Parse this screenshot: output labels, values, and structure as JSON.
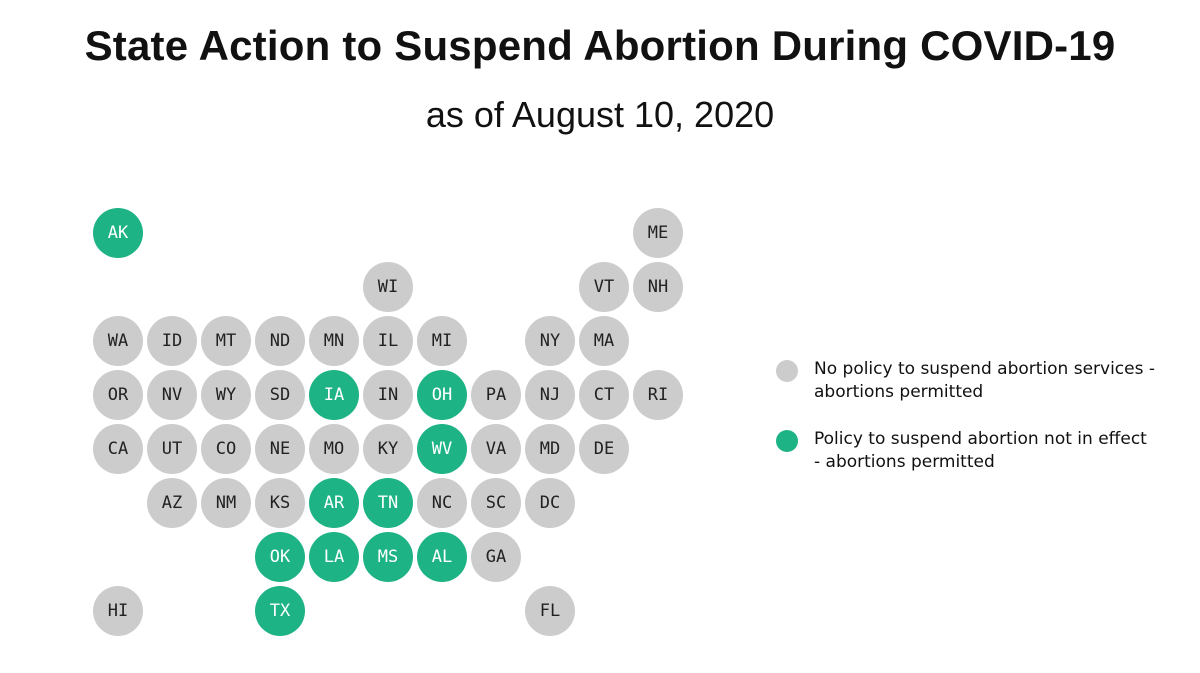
{
  "title": "State Action to Suspend Abortion During COVID-19",
  "subtitle": "as of August 10, 2020",
  "colors": {
    "no_policy": "#cccccc",
    "policy_not_in_effect": "#1db385",
    "label_on_gray": "#222222",
    "label_on_green": "#ffffff"
  },
  "legend": [
    {
      "key": "no_policy",
      "label": "No policy to suspend abortion services - abortions permitted"
    },
    {
      "key": "policy_not_in_effect",
      "label": "Policy to suspend abortion not in effect - abortions permitted"
    }
  ],
  "states": [
    {
      "code": "AK",
      "row": 0,
      "col": 0,
      "status": "policy_not_in_effect"
    },
    {
      "code": "ME",
      "row": 0,
      "col": 10,
      "status": "no_policy"
    },
    {
      "code": "WI",
      "row": 1,
      "col": 5,
      "status": "no_policy"
    },
    {
      "code": "VT",
      "row": 1,
      "col": 9,
      "status": "no_policy"
    },
    {
      "code": "NH",
      "row": 1,
      "col": 10,
      "status": "no_policy"
    },
    {
      "code": "WA",
      "row": 2,
      "col": 0,
      "status": "no_policy"
    },
    {
      "code": "ID",
      "row": 2,
      "col": 1,
      "status": "no_policy"
    },
    {
      "code": "MT",
      "row": 2,
      "col": 2,
      "status": "no_policy"
    },
    {
      "code": "ND",
      "row": 2,
      "col": 3,
      "status": "no_policy"
    },
    {
      "code": "MN",
      "row": 2,
      "col": 4,
      "status": "no_policy"
    },
    {
      "code": "IL",
      "row": 2,
      "col": 5,
      "status": "no_policy"
    },
    {
      "code": "MI",
      "row": 2,
      "col": 6,
      "status": "no_policy"
    },
    {
      "code": "NY",
      "row": 2,
      "col": 8,
      "status": "no_policy"
    },
    {
      "code": "MA",
      "row": 2,
      "col": 9,
      "status": "no_policy"
    },
    {
      "code": "OR",
      "row": 3,
      "col": 0,
      "status": "no_policy"
    },
    {
      "code": "NV",
      "row": 3,
      "col": 1,
      "status": "no_policy"
    },
    {
      "code": "WY",
      "row": 3,
      "col": 2,
      "status": "no_policy"
    },
    {
      "code": "SD",
      "row": 3,
      "col": 3,
      "status": "no_policy"
    },
    {
      "code": "IA",
      "row": 3,
      "col": 4,
      "status": "policy_not_in_effect"
    },
    {
      "code": "IN",
      "row": 3,
      "col": 5,
      "status": "no_policy"
    },
    {
      "code": "OH",
      "row": 3,
      "col": 6,
      "status": "policy_not_in_effect"
    },
    {
      "code": "PA",
      "row": 3,
      "col": 7,
      "status": "no_policy"
    },
    {
      "code": "NJ",
      "row": 3,
      "col": 8,
      "status": "no_policy"
    },
    {
      "code": "CT",
      "row": 3,
      "col": 9,
      "status": "no_policy"
    },
    {
      "code": "RI",
      "row": 3,
      "col": 10,
      "status": "no_policy"
    },
    {
      "code": "CA",
      "row": 4,
      "col": 0,
      "status": "no_policy"
    },
    {
      "code": "UT",
      "row": 4,
      "col": 1,
      "status": "no_policy"
    },
    {
      "code": "CO",
      "row": 4,
      "col": 2,
      "status": "no_policy"
    },
    {
      "code": "NE",
      "row": 4,
      "col": 3,
      "status": "no_policy"
    },
    {
      "code": "MO",
      "row": 4,
      "col": 4,
      "status": "no_policy"
    },
    {
      "code": "KY",
      "row": 4,
      "col": 5,
      "status": "no_policy"
    },
    {
      "code": "WV",
      "row": 4,
      "col": 6,
      "status": "policy_not_in_effect"
    },
    {
      "code": "VA",
      "row": 4,
      "col": 7,
      "status": "no_policy"
    },
    {
      "code": "MD",
      "row": 4,
      "col": 8,
      "status": "no_policy"
    },
    {
      "code": "DE",
      "row": 4,
      "col": 9,
      "status": "no_policy"
    },
    {
      "code": "AZ",
      "row": 5,
      "col": 1,
      "status": "no_policy"
    },
    {
      "code": "NM",
      "row": 5,
      "col": 2,
      "status": "no_policy"
    },
    {
      "code": "KS",
      "row": 5,
      "col": 3,
      "status": "no_policy"
    },
    {
      "code": "AR",
      "row": 5,
      "col": 4,
      "status": "policy_not_in_effect"
    },
    {
      "code": "TN",
      "row": 5,
      "col": 5,
      "status": "policy_not_in_effect"
    },
    {
      "code": "NC",
      "row": 5,
      "col": 6,
      "status": "no_policy"
    },
    {
      "code": "SC",
      "row": 5,
      "col": 7,
      "status": "no_policy"
    },
    {
      "code": "DC",
      "row": 5,
      "col": 8,
      "status": "no_policy"
    },
    {
      "code": "OK",
      "row": 6,
      "col": 3,
      "status": "policy_not_in_effect"
    },
    {
      "code": "LA",
      "row": 6,
      "col": 4,
      "status": "policy_not_in_effect"
    },
    {
      "code": "MS",
      "row": 6,
      "col": 5,
      "status": "policy_not_in_effect"
    },
    {
      "code": "AL",
      "row": 6,
      "col": 6,
      "status": "policy_not_in_effect"
    },
    {
      "code": "GA",
      "row": 6,
      "col": 7,
      "status": "no_policy"
    },
    {
      "code": "HI",
      "row": 7,
      "col": 0,
      "status": "no_policy"
    },
    {
      "code": "TX",
      "row": 7,
      "col": 3,
      "status": "policy_not_in_effect"
    },
    {
      "code": "FL",
      "row": 7,
      "col": 8,
      "status": "no_policy"
    }
  ]
}
